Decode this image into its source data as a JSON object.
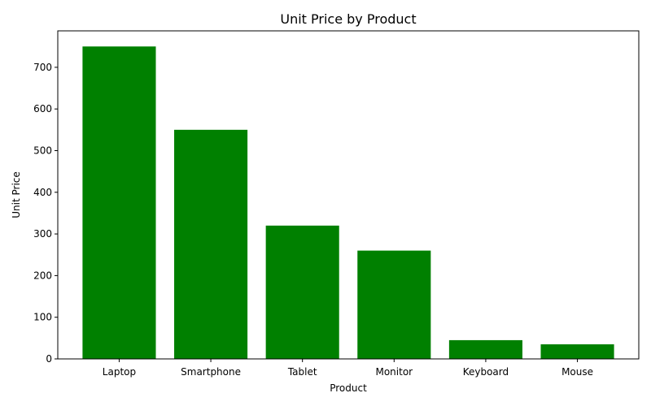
{
  "chart_data": {
    "type": "bar",
    "title": "Unit Price by Product",
    "xlabel": "Product",
    "ylabel": "Unit Price",
    "categories": [
      "Laptop",
      "Smartphone",
      "Tablet",
      "Monitor",
      "Keyboard",
      "Mouse"
    ],
    "values": [
      750,
      550,
      320,
      260,
      45,
      35
    ],
    "ylim": [
      0,
      787.5
    ],
    "yticks": [
      0,
      100,
      200,
      300,
      400,
      500,
      600,
      700
    ],
    "bar_color": "#008000",
    "grid": false,
    "legend": "none"
  }
}
